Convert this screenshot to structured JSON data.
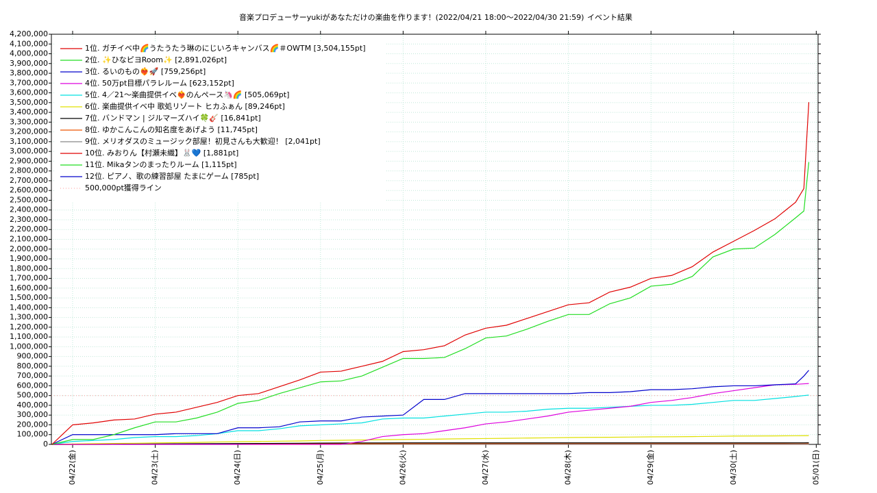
{
  "chart_data": {
    "type": "line",
    "title": "音楽プロデューサーyukiがあなただけの楽曲を作ります！(2022/04/21 18:00〜2022/04/30 21:59)",
    "subtitle": "イベント結果",
    "grid": true,
    "legend": "upper-left",
    "x": [
      21.75,
      22.0,
      22.25,
      22.5,
      22.75,
      23.0,
      23.25,
      23.5,
      23.75,
      24.0,
      24.25,
      24.5,
      24.75,
      25.0,
      25.25,
      25.5,
      25.75,
      26.0,
      26.25,
      26.5,
      26.75,
      27.0,
      27.25,
      27.5,
      27.75,
      28.0,
      28.25,
      28.5,
      28.75,
      29.0,
      29.25,
      29.5,
      29.75,
      30.0,
      30.25,
      30.5,
      30.75,
      30.85,
      30.91
    ],
    "xlim": [
      21.743,
      31.022
    ],
    "xticks": [
      {
        "value": 22,
        "label": "04/22(金)"
      },
      {
        "value": 23,
        "label": "04/23(土)"
      },
      {
        "value": 24,
        "label": "04/24(日)"
      },
      {
        "value": 25,
        "label": "04/25(月)"
      },
      {
        "value": 26,
        "label": "04/26(火)"
      },
      {
        "value": 27,
        "label": "04/27(水)"
      },
      {
        "value": 28,
        "label": "04/28(木)"
      },
      {
        "value": 29,
        "label": "04/29(金)"
      },
      {
        "value": 30,
        "label": "04/30(土)"
      },
      {
        "value": 31,
        "label": "05/01(日)"
      }
    ],
    "ylim": [
      0,
      4200000
    ],
    "yticks": [
      0,
      {
        "value": 100000,
        "label": "100,000"
      },
      {
        "value": 200000,
        "label": "200,000"
      },
      {
        "value": 300000,
        "label": "300,000"
      },
      {
        "value": 400000,
        "label": "400,000"
      },
      {
        "value": 500000,
        "label": "500,000"
      },
      {
        "value": 600000,
        "label": "600,000"
      },
      {
        "value": 700000,
        "label": "700,000"
      },
      {
        "value": 800000,
        "label": "800,000"
      },
      {
        "value": 900000,
        "label": "900,000"
      },
      {
        "value": 1000000,
        "label": "1,000,000"
      },
      {
        "value": 1100000,
        "label": "1,100,000"
      },
      {
        "value": 1200000,
        "label": "1,200,000"
      },
      {
        "value": 1300000,
        "label": "1,300,000"
      },
      {
        "value": 1400000,
        "label": "1,400,000"
      },
      {
        "value": 1500000,
        "label": "1,500,000"
      },
      {
        "value": 1600000,
        "label": "1,600,000"
      },
      {
        "value": 1700000,
        "label": "1,700,000"
      },
      {
        "value": 1800000,
        "label": "1,800,000"
      },
      {
        "value": 1900000,
        "label": "1,900,000"
      },
      {
        "value": 2000000,
        "label": "2,000,000"
      },
      {
        "value": 2100000,
        "label": "2,100,000"
      },
      {
        "value": 2200000,
        "label": "2,200,000"
      },
      {
        "value": 2300000,
        "label": "2,300,000"
      },
      {
        "value": 2400000,
        "label": "2,400,000"
      },
      {
        "value": 2500000,
        "label": "2,500,000"
      },
      {
        "value": 2600000,
        "label": "2,600,000"
      },
      {
        "value": 2700000,
        "label": "2,700,000"
      },
      {
        "value": 2800000,
        "label": "2,800,000"
      },
      {
        "value": 2900000,
        "label": "2,900,000"
      },
      {
        "value": 3000000,
        "label": "3,000,000"
      },
      {
        "value": 3100000,
        "label": "3,100,000"
      },
      {
        "value": 3200000,
        "label": "3,200,000"
      },
      {
        "value": 3300000,
        "label": "3,300,000"
      },
      {
        "value": 3400000,
        "label": "3,400,000"
      },
      {
        "value": 3500000,
        "label": "3,500,000"
      },
      {
        "value": 3600000,
        "label": "3,600,000"
      },
      {
        "value": 3700000,
        "label": "3,700,000"
      },
      {
        "value": 3800000,
        "label": "3,800,000"
      },
      {
        "value": 3900000,
        "label": "3,900,000"
      },
      {
        "value": 4000000,
        "label": "4,000,000"
      },
      {
        "value": 4100000,
        "label": "4,100,000"
      },
      {
        "value": 4200000,
        "label": "4,200,000"
      }
    ],
    "series": [
      {
        "name": "1位. ガチイベ中🌈うたうたう琳のにじいろキャンバス🌈＃OWTM [3,504,155pt]",
        "color": "#e00000",
        "values": [
          0,
          200000,
          220000,
          250000,
          260000,
          310000,
          330000,
          380000,
          430000,
          500000,
          520000,
          590000,
          660000,
          740000,
          750000,
          800000,
          850000,
          950000,
          970000,
          1010000,
          1120000,
          1190000,
          1220000,
          1290000,
          1360000,
          1430000,
          1450000,
          1560000,
          1610000,
          1700000,
          1730000,
          1820000,
          1970000,
          2080000,
          2190000,
          2310000,
          2480000,
          2620000,
          3504155
        ]
      },
      {
        "name": "2位. ✨ひなピヨRoom✨ [2,891,026pt]",
        "color": "#22dd22",
        "values": [
          0,
          50000,
          50000,
          100000,
          170000,
          230000,
          230000,
          270000,
          330000,
          420000,
          450000,
          520000,
          580000,
          640000,
          650000,
          700000,
          790000,
          880000,
          880000,
          890000,
          980000,
          1090000,
          1110000,
          1180000,
          1260000,
          1330000,
          1330000,
          1440000,
          1500000,
          1620000,
          1640000,
          1720000,
          1920000,
          2000000,
          2010000,
          2150000,
          2320000,
          2390000,
          2891026
        ]
      },
      {
        "name": "3位. るいのもの❤️‍🔥🚀 [759,256pt]",
        "color": "#0000cc",
        "values": [
          0,
          100000,
          100000,
          100000,
          100000,
          100000,
          110000,
          110000,
          110000,
          170000,
          170000,
          180000,
          230000,
          240000,
          240000,
          280000,
          290000,
          300000,
          460000,
          460000,
          520000,
          520000,
          520000,
          520000,
          520000,
          520000,
          530000,
          530000,
          540000,
          560000,
          560000,
          570000,
          590000,
          600000,
          600000,
          610000,
          620000,
          700000,
          759256
        ]
      },
      {
        "name": "4位. 50万pt目標パラレルーム [623,152pt]",
        "color": "#dd00dd",
        "values": [
          0,
          0,
          0,
          0,
          0,
          0,
          0,
          0,
          0,
          0,
          0,
          0,
          0,
          0,
          0,
          30000,
          80000,
          100000,
          110000,
          140000,
          170000,
          210000,
          230000,
          260000,
          290000,
          330000,
          350000,
          370000,
          390000,
          430000,
          450000,
          480000,
          520000,
          550000,
          580000,
          610000,
          615000,
          620000,
          623152
        ]
      },
      {
        "name": "5位. 4／21〜楽曲提供イベ❤️‍🔥のんペース🦄🌈 [505,069pt]",
        "color": "#00e0e0",
        "values": [
          0,
          30000,
          40000,
          50000,
          70000,
          80000,
          80000,
          90000,
          110000,
          140000,
          140000,
          160000,
          190000,
          200000,
          210000,
          220000,
          260000,
          270000,
          270000,
          290000,
          310000,
          330000,
          330000,
          340000,
          360000,
          370000,
          370000,
          380000,
          390000,
          400000,
          400000,
          410000,
          430000,
          450000,
          450000,
          470000,
          490000,
          500000,
          505069
        ]
      },
      {
        "name": "6位. 楽曲提供イベ中 歌処リゾート ヒカふぁん [89,246pt]",
        "color": "#e0e000",
        "values": [
          0,
          5000,
          8000,
          10000,
          12000,
          15000,
          18000,
          20000,
          25000,
          28000,
          30000,
          33000,
          35000,
          40000,
          42000,
          45000,
          48000,
          50000,
          52000,
          55000,
          58000,
          60000,
          62000,
          65000,
          67000,
          70000,
          72000,
          73000,
          75000,
          77000,
          78000,
          80000,
          82000,
          85000,
          86000,
          87000,
          88000,
          88500,
          89246
        ]
      },
      {
        "name": "7位. バンドマン | ジルマーズハイ🍀🎸 [16,841pt]",
        "color": "#000000",
        "values": [
          0,
          1000,
          2000,
          3000,
          4000,
          5000,
          6000,
          7000,
          8000,
          9000,
          10000,
          11000,
          12000,
          13000,
          14000,
          15000,
          15000,
          16000,
          16000,
          16000,
          16000,
          16000,
          16000,
          16000,
          16000,
          16000,
          16000,
          16000,
          16000,
          16000,
          16000,
          16000,
          16000,
          16000,
          16000,
          16000,
          16000,
          16000,
          16841
        ]
      },
      {
        "name": "8位. ゆかこんこんの知名度をあげよう [11,745pt]",
        "color": "#ee5500",
        "values": [
          0,
          0,
          1000,
          1000,
          2000,
          2000,
          3000,
          3000,
          4000,
          4000,
          5000,
          5000,
          6000,
          6000,
          7000,
          7000,
          8000,
          8000,
          9000,
          9000,
          10000,
          10000,
          10000,
          10000,
          11000,
          11000,
          11000,
          11000,
          11000,
          11000,
          11000,
          11000,
          11500,
          11500,
          11500,
          11500,
          11700,
          11700,
          11745
        ]
      },
      {
        "name": "9位. メリオダスのミュージック部屋！初見さんも大歓迎！ [2,041pt]",
        "color": "#888888",
        "values": [
          0,
          100,
          200,
          300,
          400,
          500,
          600,
          700,
          800,
          900,
          1000,
          1100,
          1200,
          1300,
          1400,
          1500,
          1600,
          1700,
          1800,
          1900,
          2000,
          2000,
          2000,
          2000,
          2000,
          2000,
          2000,
          2000,
          2000,
          2000,
          2000,
          2000,
          2000,
          2000,
          2000,
          2000,
          2000,
          2000,
          2041
        ]
      },
      {
        "name": "10位. みおりん【村瀬未織】🐰💙 [1,881pt]",
        "color": "#e00000",
        "values": [
          0,
          100,
          200,
          300,
          400,
          500,
          600,
          700,
          800,
          900,
          1000,
          1100,
          1200,
          1300,
          1400,
          1500,
          1600,
          1700,
          1800,
          1850,
          1850,
          1850,
          1850,
          1850,
          1850,
          1850,
          1850,
          1850,
          1850,
          1850,
          1850,
          1850,
          1850,
          1850,
          1850,
          1850,
          1850,
          1850,
          1881
        ]
      },
      {
        "name": "11位. Mikaタンのまったりルーム [1,115pt]",
        "color": "#22dd22",
        "values": [
          0,
          100,
          200,
          300,
          400,
          500,
          600,
          700,
          800,
          900,
          1000,
          1100,
          1100,
          1100,
          1100,
          1100,
          1100,
          1100,
          1100,
          1100,
          1100,
          1100,
          1100,
          1100,
          1100,
          1100,
          1100,
          1100,
          1100,
          1100,
          1100,
          1100,
          1100,
          1100,
          1100,
          1100,
          1100,
          1100,
          1115
        ]
      },
      {
        "name": "12位. ピアノ、歌の練習部屋 たまにゲーム [785pt]",
        "color": "#0000cc",
        "values": [
          0,
          100,
          200,
          300,
          400,
          500,
          600,
          700,
          780,
          780,
          780,
          780,
          780,
          780,
          780,
          780,
          780,
          780,
          780,
          780,
          780,
          780,
          780,
          780,
          780,
          780,
          780,
          780,
          780,
          780,
          780,
          780,
          780,
          780,
          780,
          780,
          780,
          780,
          785
        ]
      }
    ],
    "threshold": {
      "name": "500,000pt獲得ライン",
      "value": 500000,
      "color": "#ff9999"
    }
  }
}
